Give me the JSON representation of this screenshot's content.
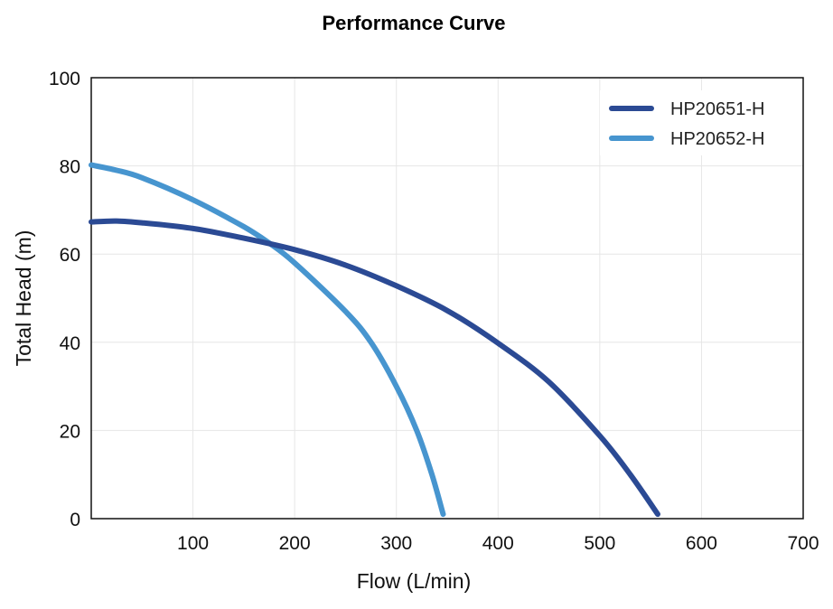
{
  "chart_data": {
    "type": "line",
    "title": "Performance Curve",
    "xlabel": "Flow (L/min)",
    "ylabel": "Total Head (m)",
    "xlim": [
      0,
      700
    ],
    "ylim": [
      0,
      100
    ],
    "x_ticks": [
      100,
      200,
      300,
      400,
      500,
      600,
      700
    ],
    "y_ticks": [
      0,
      20,
      40,
      60,
      80,
      100
    ],
    "x_tick_labels": [
      "100",
      "200",
      "300",
      "400",
      "500",
      "600",
      "700"
    ],
    "y_tick_labels": [
      "0",
      "20",
      "40",
      "60",
      "80",
      "100"
    ],
    "grid": true,
    "legend_position": "top-right",
    "series": [
      {
        "name": "HP20651-H",
        "color": "#2b4a94",
        "points": [
          [
            0,
            67.3
          ],
          [
            25,
            67.5
          ],
          [
            50,
            67.1
          ],
          [
            100,
            65.8
          ],
          [
            150,
            63.6
          ],
          [
            200,
            61.0
          ],
          [
            250,
            57.5
          ],
          [
            300,
            52.8
          ],
          [
            350,
            47.2
          ],
          [
            400,
            39.8
          ],
          [
            450,
            31.0
          ],
          [
            500,
            18.8
          ],
          [
            530,
            10.0
          ],
          [
            557,
            1.0
          ]
        ]
      },
      {
        "name": "HP20652-H",
        "color": "#4795cf",
        "points": [
          [
            0,
            80.2
          ],
          [
            25,
            79.0
          ],
          [
            50,
            77.3
          ],
          [
            100,
            72.3
          ],
          [
            150,
            66.2
          ],
          [
            175,
            62.5
          ],
          [
            200,
            58.0
          ],
          [
            250,
            47.0
          ],
          [
            275,
            40.0
          ],
          [
            300,
            30.0
          ],
          [
            320,
            20.0
          ],
          [
            335,
            10.0
          ],
          [
            346,
            1.0
          ]
        ]
      }
    ]
  }
}
